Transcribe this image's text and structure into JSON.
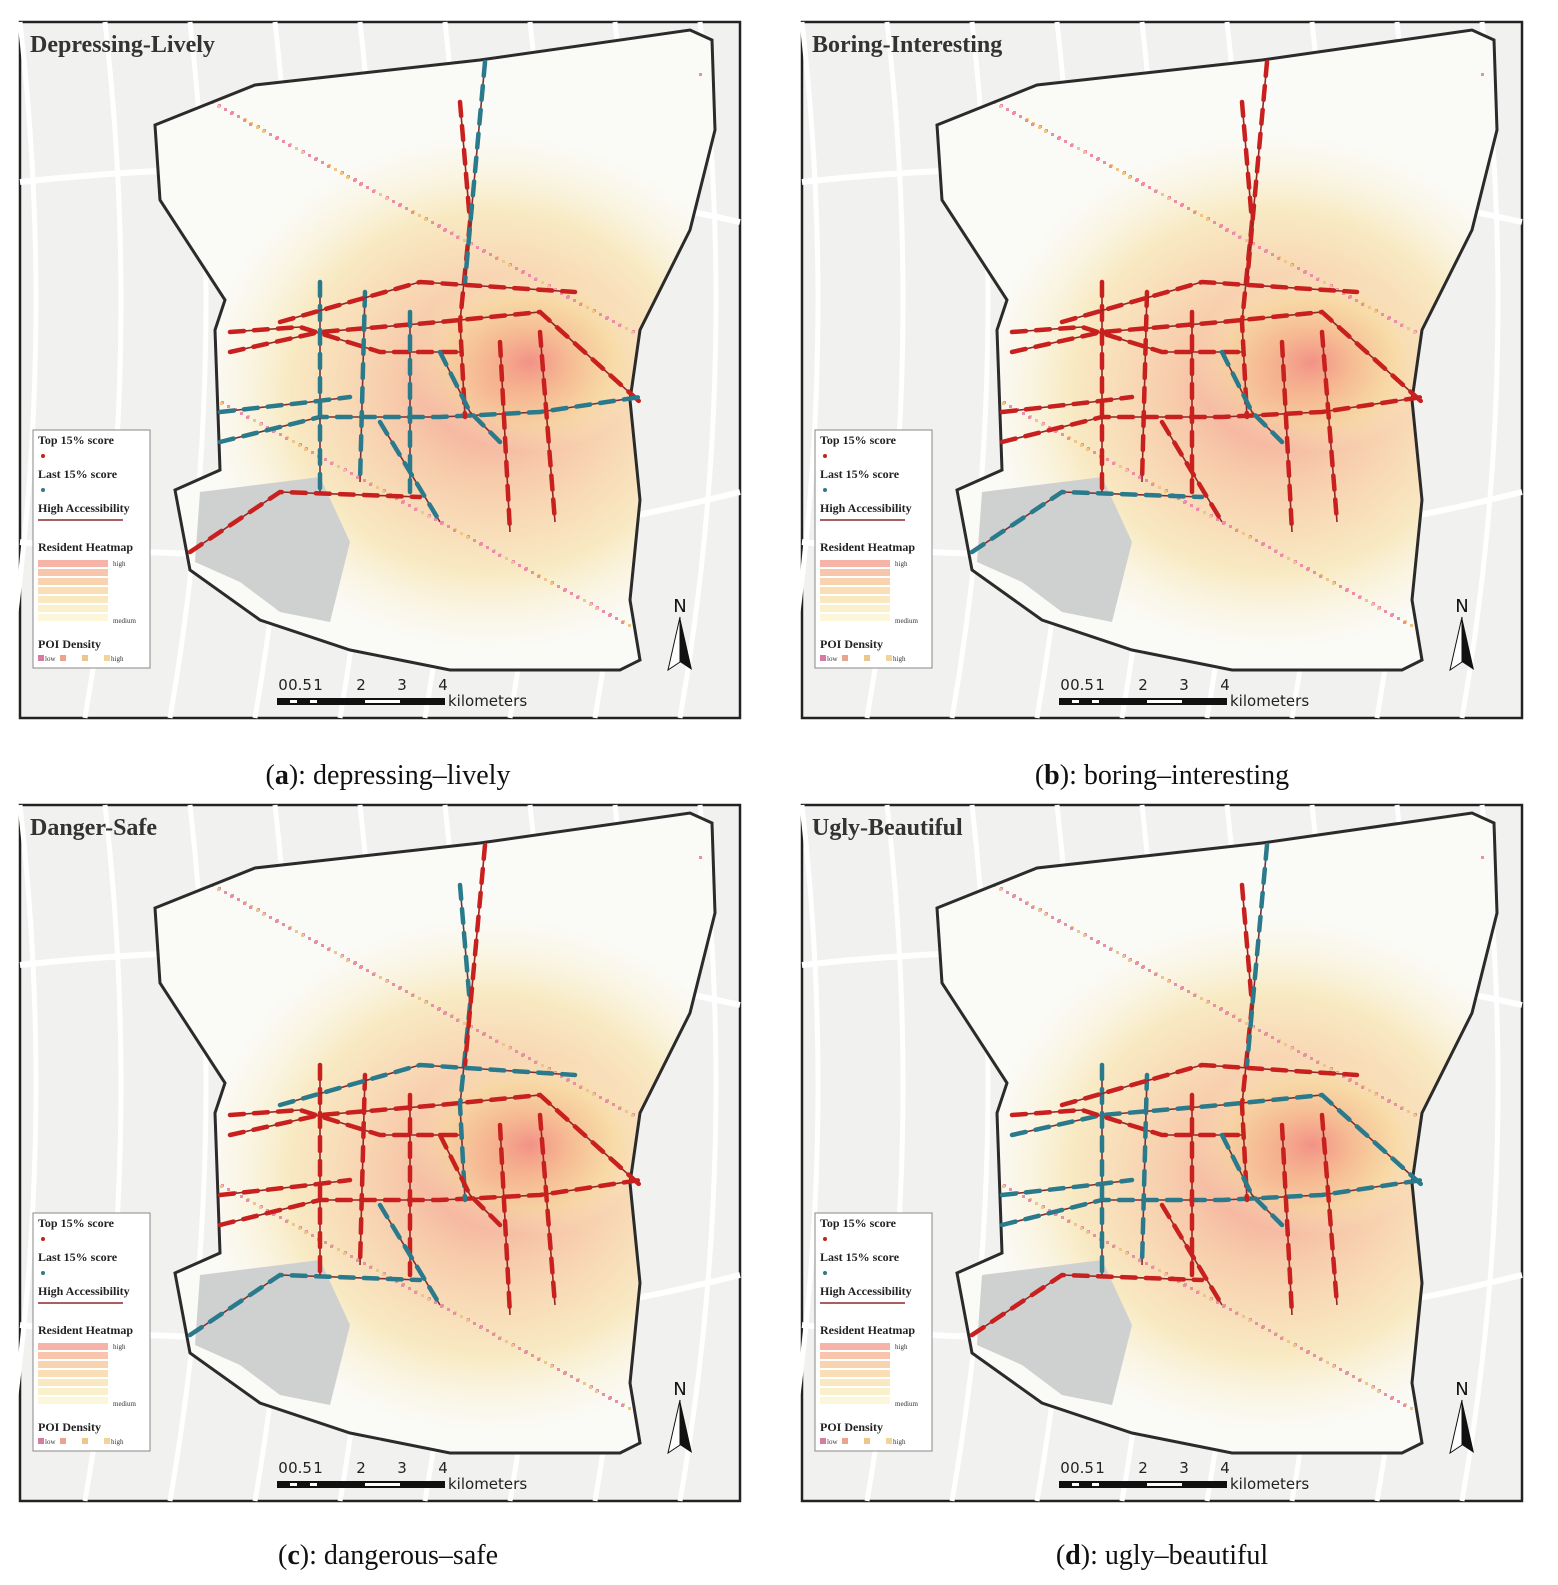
{
  "panels": [
    {
      "title": "Depressing-Lively",
      "caption": [
        "(",
        "a",
        "): depressing–lively"
      ]
    },
    {
      "title": "Boring-Interesting",
      "caption": [
        "(",
        "b",
        "): boring–interesting"
      ]
    },
    {
      "title": "Danger-Safe",
      "caption": [
        "(",
        "c",
        "): dangerous–safe"
      ]
    },
    {
      "title": "Ugly-Beautiful",
      "caption": [
        "(",
        "d",
        "): ugly–beautiful"
      ]
    }
  ],
  "legend": {
    "top": "Top 15% score",
    "last": "Last 15% score",
    "access": "High Accessibility",
    "heatmap": "Resident Heatmap",
    "heat_high": "high",
    "heat_medium": "medium",
    "poi": "POI Density",
    "poi_low": "low",
    "poi_high": "high"
  },
  "scale": {
    "labels": [
      "0",
      "0.5",
      "1",
      "2",
      "3",
      "4"
    ],
    "unit": "kilometers"
  },
  "north": "N"
}
